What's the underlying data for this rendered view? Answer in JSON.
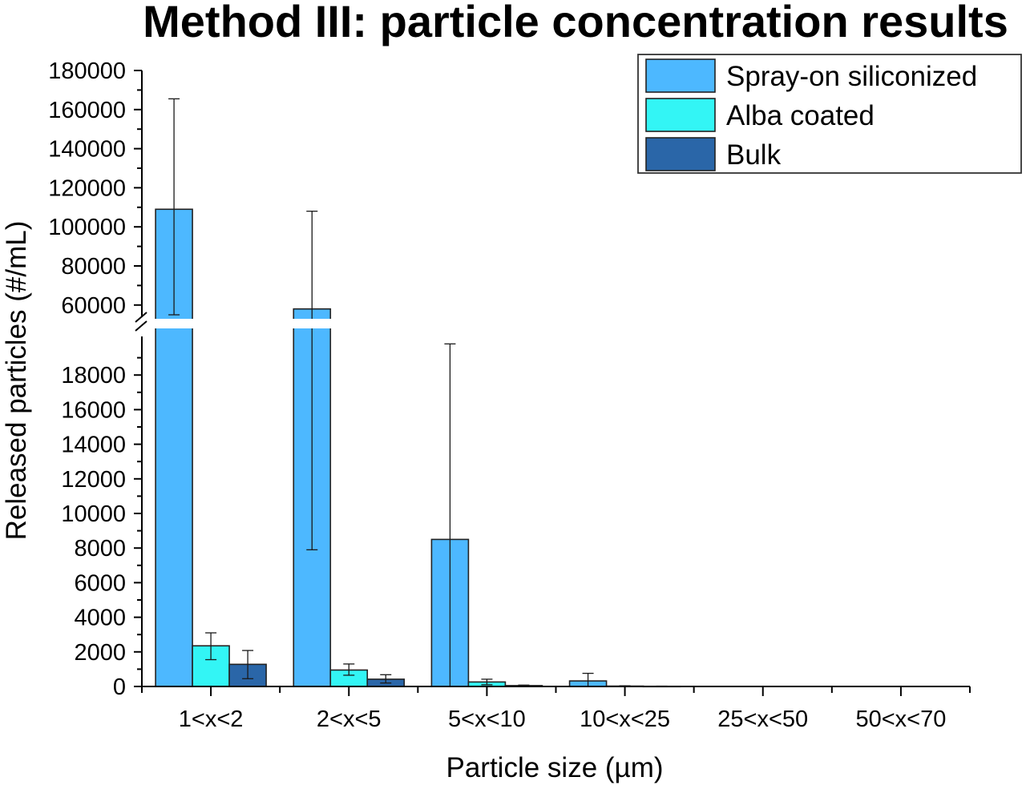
{
  "chart_data": {
    "type": "bar",
    "title": "Method III: particle concentration results",
    "xlabel": "Particle size (µm)",
    "ylabel": "Released particles (#/mL)",
    "categories": [
      "1<x<2",
      "2<x<5",
      "5<x<10",
      "10<x<25",
      "25<x<50",
      "50<x<70"
    ],
    "y_axis_break": [
      20000,
      55000
    ],
    "ylim_lower": [
      0,
      20000
    ],
    "ylim_upper": [
      55000,
      180000
    ],
    "yticks_lower": [
      "0",
      "2000",
      "4000",
      "6000",
      "8000",
      "10000",
      "12000",
      "14000",
      "16000",
      "18000"
    ],
    "yticks_upper": [
      "60000",
      "80000",
      "100000",
      "120000",
      "140000",
      "160000",
      "180000"
    ],
    "legend_position": "top-right",
    "grid": false,
    "series": [
      {
        "name": "Spray-on siliconized",
        "color": "#4db8ff",
        "values": [
          109000,
          58000,
          8500,
          320,
          0,
          0
        ],
        "error_low": [
          52000,
          7900,
          0,
          0,
          0,
          0
        ],
        "error_high": [
          165500,
          108000,
          19800,
          760,
          0,
          0
        ]
      },
      {
        "name": "Alba coated",
        "color": "#33f5f5",
        "values": [
          2350,
          950,
          260,
          20,
          0,
          0
        ],
        "error_low": [
          1550,
          650,
          100,
          0,
          0,
          0
        ],
        "error_high": [
          3100,
          1300,
          420,
          40,
          0,
          0
        ]
      },
      {
        "name": "Bulk",
        "color": "#2a66a8",
        "values": [
          1280,
          420,
          50,
          10,
          0,
          0
        ],
        "error_low": [
          450,
          200,
          20,
          0,
          0,
          0
        ],
        "error_high": [
          2080,
          680,
          80,
          20,
          0,
          0
        ]
      }
    ]
  }
}
